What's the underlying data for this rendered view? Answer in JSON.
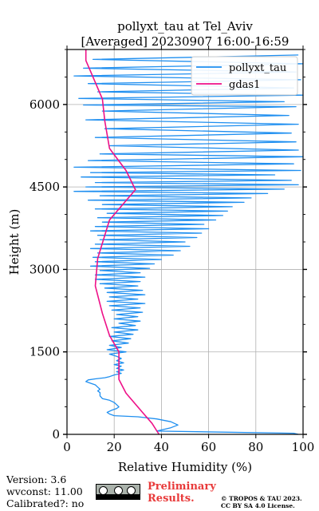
{
  "chart_data": {
    "type": "line",
    "title_line1": "pollyxt_tau at Tel_Aviv",
    "title_line2": "[Averaged] 20230907 16:00-16:59",
    "xlabel": "Relative Humidity (%)",
    "ylabel": "Height (m)",
    "xlim": [
      0,
      100
    ],
    "ylim": [
      0,
      7000
    ],
    "xticks": [
      0,
      20,
      40,
      60,
      80,
      100
    ],
    "yticks": [
      0,
      1500,
      3000,
      4500,
      6000
    ],
    "grid": true,
    "legend_position": "top-right",
    "series": [
      {
        "name": "pollyxt_tau",
        "color": "#1f8ff0",
        "points": [
          [
            98,
            0
          ],
          [
            96,
            20
          ],
          [
            38,
            60
          ],
          [
            44,
            120
          ],
          [
            47,
            170
          ],
          [
            44,
            230
          ],
          [
            38,
            280
          ],
          [
            30,
            320
          ],
          [
            20,
            340
          ],
          [
            18,
            370
          ],
          [
            17,
            400
          ],
          [
            19,
            440
          ],
          [
            21,
            470
          ],
          [
            22,
            500
          ],
          [
            21,
            540
          ],
          [
            20,
            580
          ],
          [
            18,
            620
          ],
          [
            15,
            650
          ],
          [
            14,
            700
          ],
          [
            14,
            760
          ],
          [
            13,
            790
          ],
          [
            14,
            820
          ],
          [
            13,
            860
          ],
          [
            12,
            900
          ],
          [
            10,
            930
          ],
          [
            8,
            960
          ],
          [
            9,
            990
          ],
          [
            12,
            1010
          ],
          [
            16,
            1030
          ],
          [
            18,
            1050
          ],
          [
            20,
            1080
          ],
          [
            23,
            1110
          ],
          [
            21,
            1140
          ],
          [
            24,
            1170
          ],
          [
            21,
            1200
          ],
          [
            23,
            1240
          ],
          [
            20,
            1270
          ],
          [
            24,
            1300
          ],
          [
            21,
            1340
          ],
          [
            23,
            1380
          ],
          [
            21,
            1420
          ],
          [
            18,
            1460
          ],
          [
            25,
            1500
          ],
          [
            17,
            1540
          ],
          [
            23,
            1580
          ],
          [
            18,
            1620
          ],
          [
            26,
            1660
          ],
          [
            19,
            1700
          ],
          [
            27,
            1740
          ],
          [
            18,
            1780
          ],
          [
            28,
            1820
          ],
          [
            20,
            1860
          ],
          [
            30,
            1900
          ],
          [
            19,
            1940
          ],
          [
            29,
            1980
          ],
          [
            22,
            2020
          ],
          [
            31,
            2060
          ],
          [
            20,
            2100
          ],
          [
            30,
            2140
          ],
          [
            21,
            2180
          ],
          [
            32,
            2220
          ],
          [
            19,
            2260
          ],
          [
            31,
            2300
          ],
          [
            18,
            2340
          ],
          [
            33,
            2380
          ],
          [
            17,
            2420
          ],
          [
            30,
            2460
          ],
          [
            18,
            2500
          ],
          [
            33,
            2540
          ],
          [
            17,
            2580
          ],
          [
            32,
            2620
          ],
          [
            16,
            2660
          ],
          [
            30,
            2700
          ],
          [
            14,
            2740
          ],
          [
            31,
            2780
          ],
          [
            12,
            2820
          ],
          [
            33,
            2860
          ],
          [
            12,
            2900
          ],
          [
            31,
            2940
          ],
          [
            14,
            2980
          ],
          [
            35,
            3020
          ],
          [
            10,
            3060
          ],
          [
            37,
            3100
          ],
          [
            12,
            3140
          ],
          [
            40,
            3180
          ],
          [
            11,
            3220
          ],
          [
            45,
            3260
          ],
          [
            13,
            3300
          ],
          [
            48,
            3340
          ],
          [
            10,
            3380
          ],
          [
            52,
            3420
          ],
          [
            12,
            3460
          ],
          [
            50,
            3500
          ],
          [
            14,
            3540
          ],
          [
            55,
            3580
          ],
          [
            13,
            3620
          ],
          [
            57,
            3660
          ],
          [
            10,
            3700
          ],
          [
            60,
            3740
          ],
          [
            12,
            3780
          ],
          [
            58,
            3820
          ],
          [
            15,
            3860
          ],
          [
            63,
            3900
          ],
          [
            13,
            3940
          ],
          [
            66,
            3980
          ],
          [
            17,
            4020
          ],
          [
            68,
            4060
          ],
          [
            12,
            4100
          ],
          [
            70,
            4140
          ],
          [
            15,
            4180
          ],
          [
            75,
            4220
          ],
          [
            9,
            4260
          ],
          [
            78,
            4300
          ],
          [
            14,
            4340
          ],
          [
            85,
            4380
          ],
          [
            3,
            4420
          ],
          [
            92,
            4460
          ],
          [
            8,
            4500
          ],
          [
            98,
            4540
          ],
          [
            12,
            4580
          ],
          [
            95,
            4620
          ],
          [
            6,
            4680
          ],
          [
            88,
            4720
          ],
          [
            10,
            4760
          ],
          [
            99,
            4800
          ],
          [
            3,
            4860
          ],
          [
            96,
            4920
          ],
          [
            9,
            4980
          ],
          [
            100,
            5050
          ],
          [
            14,
            5100
          ],
          [
            98,
            5170
          ],
          [
            18,
            5250
          ],
          [
            97,
            5320
          ],
          [
            12,
            5400
          ],
          [
            95,
            5480
          ],
          [
            16,
            5560
          ],
          [
            98,
            5640
          ],
          [
            8,
            5720
          ],
          [
            94,
            5800
          ],
          [
            15,
            5880
          ],
          [
            97,
            5960
          ],
          [
            7,
            5990
          ],
          [
            92,
            6050
          ],
          [
            5,
            6110
          ],
          [
            100,
            6170
          ],
          [
            13,
            6230
          ],
          [
            96,
            6300
          ],
          [
            9,
            6380
          ],
          [
            99,
            6450
          ],
          [
            3,
            6520
          ],
          [
            97,
            6590
          ],
          [
            7,
            6660
          ],
          [
            100,
            6740
          ],
          [
            11,
            6820
          ],
          [
            98,
            6900
          ]
        ]
      },
      {
        "name": "gdas1",
        "color": "#ee1188",
        "points": [
          [
            39,
            0
          ],
          [
            36,
            200
          ],
          [
            32,
            400
          ],
          [
            25,
            750
          ],
          [
            22,
            1000
          ],
          [
            22,
            1500
          ],
          [
            18,
            1800
          ],
          [
            15,
            2200
          ],
          [
            12,
            2700
          ],
          [
            13,
            3200
          ],
          [
            18,
            3900
          ],
          [
            29,
            4450
          ],
          [
            25,
            4800
          ],
          [
            18,
            5200
          ],
          [
            16,
            5700
          ],
          [
            15,
            6100
          ],
          [
            11,
            6500
          ],
          [
            8,
            6800
          ],
          [
            8,
            7000
          ]
        ]
      }
    ]
  },
  "footer": {
    "version": "Version: 3.6",
    "wvconst": "wvconst:  11.00",
    "calibrated": "Calibrated?: no",
    "preliminary_line1": "Preliminary",
    "preliminary_line2": "Results.",
    "copyright_line1": "© TROPOS & TAU 2023.",
    "copyright_line2": "CC BY SA 4.0 License."
  }
}
